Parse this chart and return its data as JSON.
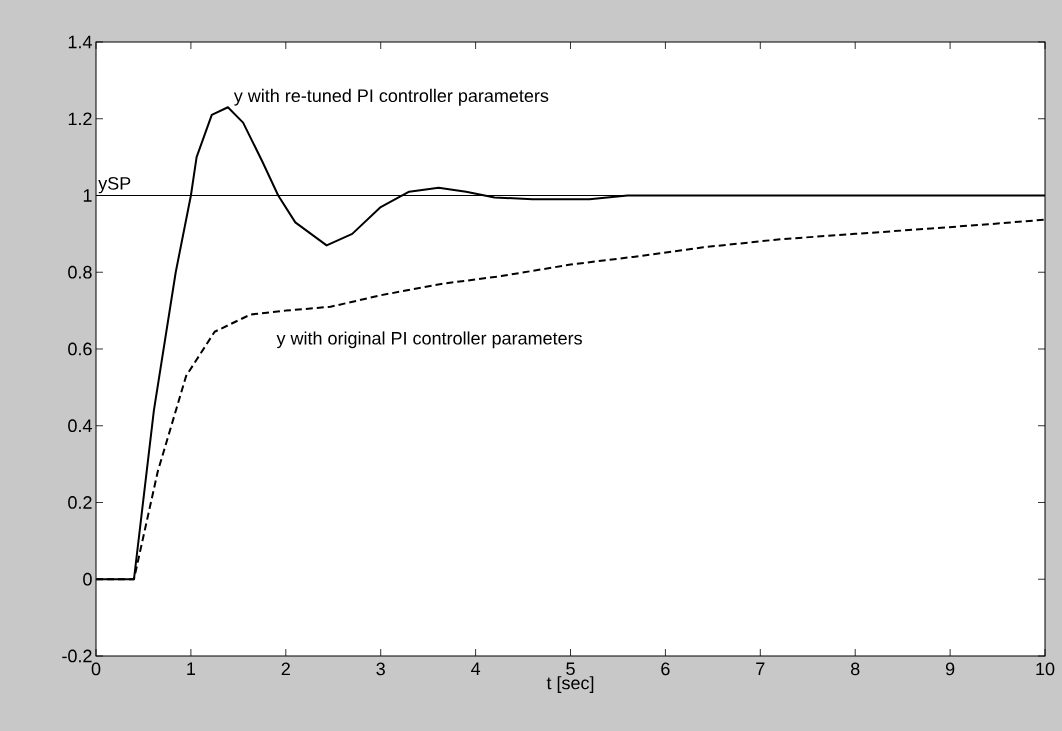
{
  "chart_data": {
    "type": "line",
    "xlabel": "t [sec]",
    "xlim": [
      0,
      10
    ],
    "xticks": [
      0,
      1,
      2,
      3,
      4,
      5,
      6,
      7,
      8,
      9,
      10
    ],
    "ylim": [
      -0.2,
      1.4
    ],
    "yticks": [
      -0.2,
      0,
      0.2,
      0.4,
      0.6,
      0.8,
      1,
      1.2,
      1.4
    ],
    "series": [
      {
        "color": "#000000",
        "line_style": "solid",
        "x": [
          0,
          0.4,
          0.61,
          0.84,
          1.0,
          1.06,
          1.22,
          1.39,
          1.55,
          1.75,
          1.92,
          2.1,
          2.43,
          2.7,
          3.0,
          3.3,
          3.61,
          3.9,
          4.2,
          4.6,
          5.2,
          5.6,
          6.0,
          7.0,
          8.0,
          9.0,
          10.0
        ],
        "values": [
          0,
          0,
          0.44,
          0.8,
          1.0,
          1.1,
          1.21,
          1.23,
          1.19,
          1.09,
          1.0,
          0.93,
          0.87,
          0.9,
          0.97,
          1.01,
          1.02,
          1.01,
          0.995,
          0.99,
          0.99,
          1.0,
          1.0,
          1.0,
          1.0,
          1.0,
          1.0
        ]
      },
      {
        "color": "#000000",
        "line_style": "dashed",
        "x": [
          0,
          0.4,
          0.65,
          0.95,
          1.25,
          1.63,
          2.0,
          2.47,
          3.0,
          3.65,
          4.27,
          5.0,
          5.66,
          6.4,
          7.21,
          8.0,
          8.8,
          9.4,
          10.0
        ],
        "values": [
          0,
          0,
          0.28,
          0.53,
          0.645,
          0.69,
          0.7,
          0.71,
          0.74,
          0.77,
          0.79,
          0.82,
          0.84,
          0.865,
          0.886,
          0.9,
          0.914,
          0.925,
          0.937
        ]
      }
    ],
    "ref_lines": [
      {
        "axis": "y",
        "value": 1,
        "label": "ySP",
        "color": "#000000"
      }
    ],
    "annotations": [
      "y with re-tuned PI controller parameters",
      "y with original PI controller parameters"
    ]
  }
}
